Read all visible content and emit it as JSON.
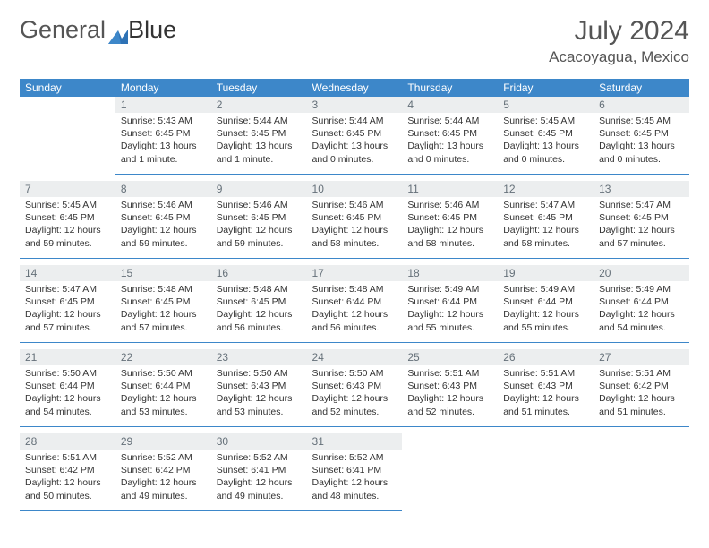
{
  "logo": {
    "text1": "General",
    "text2": "Blue"
  },
  "title": "July 2024",
  "location": "Acacoyagua, Mexico",
  "colors": {
    "header_bg": "#3d87c9",
    "header_fg": "#ffffff",
    "daynum_bg": "#eceeef",
    "daynum_fg": "#657079",
    "rule": "#3d87c9",
    "text": "#333333"
  },
  "weekdays": [
    "Sunday",
    "Monday",
    "Tuesday",
    "Wednesday",
    "Thursday",
    "Friday",
    "Saturday"
  ],
  "weeks": [
    [
      {
        "n": "",
        "sr": "",
        "ss": "",
        "dl": ""
      },
      {
        "n": "1",
        "sr": "5:43 AM",
        "ss": "6:45 PM",
        "dl": "13 hours and 1 minute."
      },
      {
        "n": "2",
        "sr": "5:44 AM",
        "ss": "6:45 PM",
        "dl": "13 hours and 1 minute."
      },
      {
        "n": "3",
        "sr": "5:44 AM",
        "ss": "6:45 PM",
        "dl": "13 hours and 0 minutes."
      },
      {
        "n": "4",
        "sr": "5:44 AM",
        "ss": "6:45 PM",
        "dl": "13 hours and 0 minutes."
      },
      {
        "n": "5",
        "sr": "5:45 AM",
        "ss": "6:45 PM",
        "dl": "13 hours and 0 minutes."
      },
      {
        "n": "6",
        "sr": "5:45 AM",
        "ss": "6:45 PM",
        "dl": "13 hours and 0 minutes."
      }
    ],
    [
      {
        "n": "7",
        "sr": "5:45 AM",
        "ss": "6:45 PM",
        "dl": "12 hours and 59 minutes."
      },
      {
        "n": "8",
        "sr": "5:46 AM",
        "ss": "6:45 PM",
        "dl": "12 hours and 59 minutes."
      },
      {
        "n": "9",
        "sr": "5:46 AM",
        "ss": "6:45 PM",
        "dl": "12 hours and 59 minutes."
      },
      {
        "n": "10",
        "sr": "5:46 AM",
        "ss": "6:45 PM",
        "dl": "12 hours and 58 minutes."
      },
      {
        "n": "11",
        "sr": "5:46 AM",
        "ss": "6:45 PM",
        "dl": "12 hours and 58 minutes."
      },
      {
        "n": "12",
        "sr": "5:47 AM",
        "ss": "6:45 PM",
        "dl": "12 hours and 58 minutes."
      },
      {
        "n": "13",
        "sr": "5:47 AM",
        "ss": "6:45 PM",
        "dl": "12 hours and 57 minutes."
      }
    ],
    [
      {
        "n": "14",
        "sr": "5:47 AM",
        "ss": "6:45 PM",
        "dl": "12 hours and 57 minutes."
      },
      {
        "n": "15",
        "sr": "5:48 AM",
        "ss": "6:45 PM",
        "dl": "12 hours and 57 minutes."
      },
      {
        "n": "16",
        "sr": "5:48 AM",
        "ss": "6:45 PM",
        "dl": "12 hours and 56 minutes."
      },
      {
        "n": "17",
        "sr": "5:48 AM",
        "ss": "6:44 PM",
        "dl": "12 hours and 56 minutes."
      },
      {
        "n": "18",
        "sr": "5:49 AM",
        "ss": "6:44 PM",
        "dl": "12 hours and 55 minutes."
      },
      {
        "n": "19",
        "sr": "5:49 AM",
        "ss": "6:44 PM",
        "dl": "12 hours and 55 minutes."
      },
      {
        "n": "20",
        "sr": "5:49 AM",
        "ss": "6:44 PM",
        "dl": "12 hours and 54 minutes."
      }
    ],
    [
      {
        "n": "21",
        "sr": "5:50 AM",
        "ss": "6:44 PM",
        "dl": "12 hours and 54 minutes."
      },
      {
        "n": "22",
        "sr": "5:50 AM",
        "ss": "6:44 PM",
        "dl": "12 hours and 53 minutes."
      },
      {
        "n": "23",
        "sr": "5:50 AM",
        "ss": "6:43 PM",
        "dl": "12 hours and 53 minutes."
      },
      {
        "n": "24",
        "sr": "5:50 AM",
        "ss": "6:43 PM",
        "dl": "12 hours and 52 minutes."
      },
      {
        "n": "25",
        "sr": "5:51 AM",
        "ss": "6:43 PM",
        "dl": "12 hours and 52 minutes."
      },
      {
        "n": "26",
        "sr": "5:51 AM",
        "ss": "6:43 PM",
        "dl": "12 hours and 51 minutes."
      },
      {
        "n": "27",
        "sr": "5:51 AM",
        "ss": "6:42 PM",
        "dl": "12 hours and 51 minutes."
      }
    ],
    [
      {
        "n": "28",
        "sr": "5:51 AM",
        "ss": "6:42 PM",
        "dl": "12 hours and 50 minutes."
      },
      {
        "n": "29",
        "sr": "5:52 AM",
        "ss": "6:42 PM",
        "dl": "12 hours and 49 minutes."
      },
      {
        "n": "30",
        "sr": "5:52 AM",
        "ss": "6:41 PM",
        "dl": "12 hours and 49 minutes."
      },
      {
        "n": "31",
        "sr": "5:52 AM",
        "ss": "6:41 PM",
        "dl": "12 hours and 48 minutes."
      },
      {
        "n": "",
        "sr": "",
        "ss": "",
        "dl": ""
      },
      {
        "n": "",
        "sr": "",
        "ss": "",
        "dl": ""
      },
      {
        "n": "",
        "sr": "",
        "ss": "",
        "dl": ""
      }
    ]
  ],
  "labels": {
    "sunrise": "Sunrise:",
    "sunset": "Sunset:",
    "daylight": "Daylight:"
  }
}
